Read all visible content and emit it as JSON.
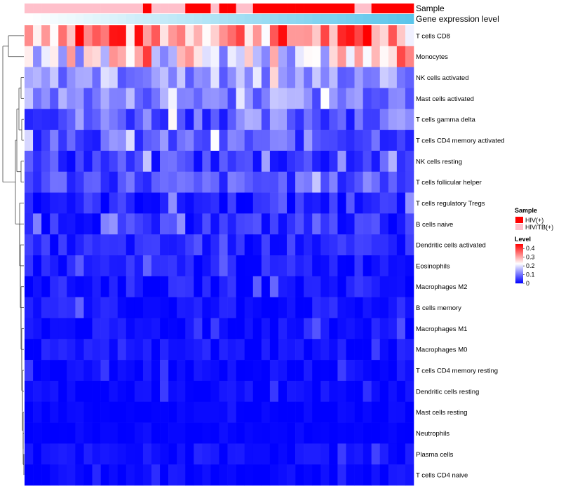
{
  "chart_data": {
    "type": "heatmap",
    "title": "",
    "annotation_tracks": [
      {
        "name": "Sample",
        "label": "Sample"
      },
      {
        "name": "Gene expression level",
        "label": "Gene expression level"
      }
    ],
    "rows": [
      "T cells CD8",
      "Monocytes",
      "NK cells activated",
      "Mast cells activated",
      "T cells gamma delta",
      "T cells CD4 memory activated",
      "NK cells resting",
      "T cells follicular helper",
      "T cells regulatory  Tregs",
      "B cells naive",
      "Dendritic cells activated",
      "Eosinophils",
      "Macrophages M2",
      "B cells memory",
      "Macrophages M1",
      "Macrophages M0",
      "T cells CD4 memory resting",
      "Dendritic cells resting",
      "Mast cells resting",
      "Neutrophils",
      "Plasma cells",
      "T cells CD4 naive"
    ],
    "n_columns": 46,
    "column_sample": [
      "HIV/TB(+)",
      "HIV/TB(+)",
      "HIV/TB(+)",
      "HIV/TB(+)",
      "HIV/TB(+)",
      "HIV/TB(+)",
      "HIV/TB(+)",
      "HIV/TB(+)",
      "HIV/TB(+)",
      "HIV/TB(+)",
      "HIV/TB(+)",
      "HIV/TB(+)",
      "HIV/TB(+)",
      "HIV/TB(+)",
      "HIV(+)",
      "HIV/TB(+)",
      "HIV/TB(+)",
      "HIV/TB(+)",
      "HIV/TB(+)",
      "HIV(+)",
      "HIV(+)",
      "HIV(+)",
      "HIV/TB(+)",
      "HIV(+)",
      "HIV(+)",
      "HIV/TB(+)",
      "HIV/TB(+)",
      "HIV(+)",
      "HIV(+)",
      "HIV(+)",
      "HIV(+)",
      "HIV(+)",
      "HIV(+)",
      "HIV(+)",
      "HIV(+)",
      "HIV(+)",
      "HIV(+)",
      "HIV(+)",
      "HIV(+)",
      "HIV/TB(+)",
      "HIV/TB(+)",
      "HIV(+)",
      "HIV(+)",
      "HIV(+)",
      "HIV(+)",
      "HIV(+)"
    ],
    "column_expression_level": [
      0.0,
      0.02,
      0.04,
      0.07,
      0.09,
      0.11,
      0.13,
      0.16,
      0.18,
      0.2,
      0.22,
      0.24,
      0.27,
      0.29,
      0.31,
      0.33,
      0.36,
      0.38,
      0.4,
      0.42,
      0.44,
      0.47,
      0.49,
      0.51,
      0.53,
      0.56,
      0.58,
      0.6,
      0.62,
      0.64,
      0.67,
      0.69,
      0.71,
      0.73,
      0.76,
      0.78,
      0.8,
      0.82,
      0.84,
      0.87,
      0.89,
      0.91,
      0.93,
      0.96,
      0.98,
      1.0
    ],
    "row_base_level": [
      0.33,
      0.22,
      0.13,
      0.12,
      0.09,
      0.08,
      0.05,
      0.07,
      0.03,
      0.04,
      0.03,
      0.025,
      0.02,
      0.015,
      0.012,
      0.012,
      0.006,
      0.006,
      0.003,
      0.002,
      0.01,
      0.005
    ],
    "row_variation": [
      0.12,
      0.12,
      0.06,
      0.06,
      0.07,
      0.06,
      0.05,
      0.05,
      0.04,
      0.04,
      0.03,
      0.03,
      0.03,
      0.03,
      0.025,
      0.025,
      0.02,
      0.02,
      0.01,
      0.005,
      0.02,
      0.02
    ],
    "legend": [
      {
        "title": "Sample",
        "entries": [
          {
            "label": "HIV(+)",
            "color": "#ff0000"
          },
          {
            "label": "HIV/TB(+)",
            "color": "#ffc0cb"
          }
        ]
      },
      {
        "title": "Level",
        "ticks": [
          "0.4",
          "0.3",
          "0.2",
          "0.1",
          "0"
        ],
        "tick_values": [
          0.4,
          0.3,
          0.2,
          0.1,
          0.0
        ]
      }
    ],
    "colors": {
      "low": "#0000ff",
      "mid": "#ffffff",
      "high": "#ff0000",
      "track_low": "#ffffff",
      "track_high": "#5bc5eb"
    },
    "scale_range": [
      0,
      0.45
    ]
  }
}
